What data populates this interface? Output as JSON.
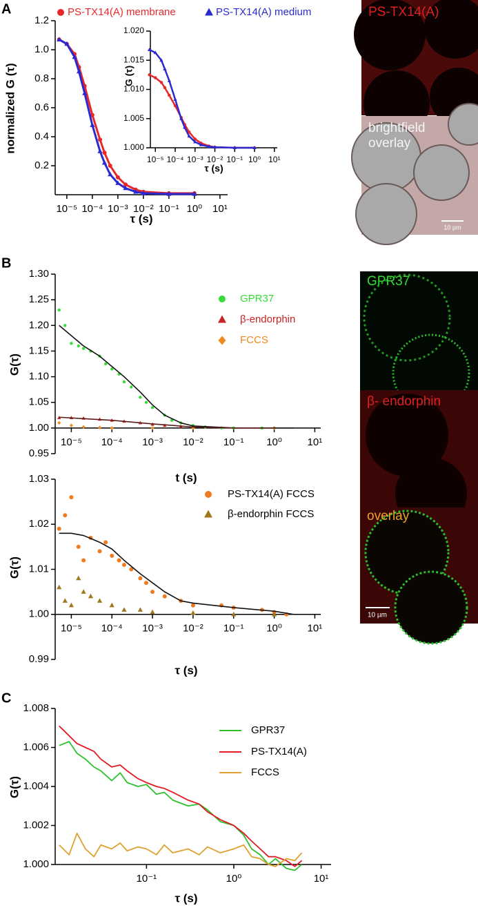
{
  "panel_labels": [
    "A",
    "B",
    "C"
  ],
  "micrographs": {
    "A": {
      "top_label": "PS-TX14(A)",
      "bottom_label": [
        "brightfield",
        "overlay"
      ],
      "scale_bar": "10 µm"
    },
    "B": {
      "labels": [
        "GPR37",
        "β- endorphin",
        "overlay"
      ],
      "scale_bar": "10 µm"
    }
  },
  "chart_data": [
    {
      "type": "line",
      "xlabel": "τ (s)",
      "ylabel": "normalized G (τ)",
      "xscale": "log",
      "legend": "top",
      "legend_text_colored": true,
      "xlim": [
        3.5e-06,
        20
      ],
      "ylim": [
        0,
        1.2
      ],
      "xticks": [
        {
          "value": 1e-05,
          "label": "10⁻⁵"
        },
        {
          "value": 0.0001,
          "label": "10⁻⁴"
        },
        {
          "value": 0.001,
          "label": "10⁻³"
        },
        {
          "value": 0.01,
          "label": "10⁻²"
        },
        {
          "value": 0.1,
          "label": "10⁻¹"
        },
        {
          "value": 1,
          "label": "10⁰"
        },
        {
          "value": 10,
          "label": "10¹"
        }
      ],
      "yticks": [
        0.2,
        0.4,
        0.6,
        0.8,
        {
          "value": 1,
          "label": "1.0"
        },
        1.2
      ],
      "series": [
        {
          "name": "PS-TX14(A) membrane",
          "color": "#e8272a",
          "marker": "circle",
          "line": true,
          "x": [
            5e-06,
            1e-05,
            2e-05,
            3e-05,
            5e-05,
            0.0001,
            0.0002,
            0.0003,
            0.0005,
            0.001,
            0.002,
            0.005,
            0.01,
            0.1,
            1
          ],
          "values": [
            1.07,
            1.04,
            0.97,
            0.88,
            0.75,
            0.55,
            0.38,
            0.29,
            0.2,
            0.12,
            0.07,
            0.035,
            0.02,
            0.01,
            0.01
          ]
        },
        {
          "name": "PS-TX14(A) medium",
          "color": "#2a2ad0",
          "marker": "triangle",
          "line": true,
          "x": [
            5e-06,
            1e-05,
            2e-05,
            3e-05,
            5e-05,
            0.0001,
            0.0002,
            0.0003,
            0.0005,
            0.001,
            0.002,
            0.005,
            0.01,
            0.1,
            1
          ],
          "values": [
            1.07,
            1.04,
            0.95,
            0.85,
            0.7,
            0.48,
            0.3,
            0.22,
            0.14,
            0.08,
            0.045,
            0.02,
            0.01,
            0.005,
            0.005
          ]
        }
      ]
    },
    {
      "type": "line",
      "xlabel": "τ (s)",
      "ylabel": "G (τ)",
      "xscale": "log",
      "xlim": [
        5.6e-06,
        14
      ],
      "ylim": [
        1,
        1.02
      ],
      "xticks": [
        {
          "value": 1e-05,
          "label": "10⁻⁵"
        },
        {
          "value": 0.0001,
          "label": "10⁻⁴"
        },
        {
          "value": 0.001,
          "label": "10⁻³"
        },
        {
          "value": 0.01,
          "label": "10⁻²"
        },
        {
          "value": 0.1,
          "label": "10⁻¹"
        },
        {
          "value": 1,
          "label": "10⁰"
        },
        {
          "value": 10,
          "label": "10¹"
        }
      ],
      "yticks": [
        {
          "value": 1,
          "label": "1.000"
        },
        1.005,
        {
          "value": 1.01,
          "label": "1.010"
        },
        1.015,
        {
          "value": 1.02,
          "label": "1.020"
        }
      ],
      "series": [
        {
          "color": "#e8272a",
          "marker": "circle",
          "line": true,
          "x": [
            5e-06,
            1e-05,
            2e-05,
            3e-05,
            5e-05,
            0.0001,
            0.0002,
            0.0003,
            0.0005,
            0.001,
            0.002,
            0.005,
            0.01,
            0.1,
            1
          ],
          "values": [
            1.0125,
            1.012,
            1.0112,
            1.0103,
            1.009,
            1.0072,
            1.0052,
            1.004,
            1.0027,
            1.0015,
            1.0008,
            1.0003,
            1.0001,
            1.0,
            1.0
          ]
        },
        {
          "color": "#2a2ad0",
          "marker": "triangle",
          "line": true,
          "x": [
            5e-06,
            1e-05,
            2e-05,
            3e-05,
            5e-05,
            0.0001,
            0.0002,
            0.0003,
            0.0005,
            0.001,
            0.002,
            0.005,
            0.01,
            0.1,
            1
          ],
          "values": [
            1.0168,
            1.0163,
            1.015,
            1.0135,
            1.0115,
            1.0083,
            1.005,
            1.0035,
            1.002,
            1.001,
            1.0005,
            1.0002,
            1.0001,
            1.0,
            1.0
          ]
        }
      ]
    },
    {
      "type": "scatter",
      "xlabel": "t (s)",
      "ylabel": "G(τ)",
      "xscale": "log",
      "legend": "upper right",
      "legend_text_colored": true,
      "x_axis_crosses": 1,
      "xlim": [
        4e-06,
        14
      ],
      "ylim": [
        0.95,
        1.3
      ],
      "xticks": [
        {
          "value": 1e-05,
          "label": "10⁻⁵"
        },
        {
          "value": 0.0001,
          "label": "10⁻⁴"
        },
        {
          "value": 0.001,
          "label": "10⁻³"
        },
        {
          "value": 0.01,
          "label": "10⁻²"
        },
        {
          "value": 0.1,
          "label": "10⁻¹"
        },
        {
          "value": 1,
          "label": "10⁰"
        },
        {
          "value": 10,
          "label": "10¹"
        }
      ],
      "yticks": [
        0.95,
        {
          "value": 1,
          "label": "1.00"
        },
        1.05,
        {
          "value": 1.1,
          "label": "1.10"
        },
        1.15,
        {
          "value": 1.2,
          "label": "1.20"
        },
        1.25,
        {
          "value": 1.3,
          "label": "1.30"
        }
      ],
      "series": [
        {
          "name": "GPR37",
          "color": "#33dd33",
          "marker": "circle",
          "x": [
            5e-06,
            7e-06,
            1e-05,
            1.5e-05,
            2e-05,
            3e-05,
            5e-05,
            7e-05,
            0.0001,
            0.00015,
            0.0002,
            0.0003,
            0.0005,
            0.0007,
            0.001,
            0.002,
            0.003,
            0.005,
            0.01,
            0.02,
            0.05,
            0.1,
            0.5,
            1
          ],
          "values": [
            1.23,
            1.2,
            1.165,
            1.16,
            1.155,
            1.15,
            1.14,
            1.125,
            1.115,
            1.105,
            1.09,
            1.08,
            1.06,
            1.05,
            1.04,
            1.025,
            1.015,
            1.01,
            1.005,
            1.002,
            1.0,
            1.0,
            1.0,
            1.0
          ]
        },
        {
          "name": "β-endorphin",
          "color": "#cc2222",
          "marker": "triangle",
          "x": [
            5e-06,
            1e-05,
            2e-05,
            5e-05,
            0.0001,
            0.0002,
            0.0005,
            0.001,
            0.002,
            0.005,
            0.01
          ],
          "values": [
            1.02,
            1.02,
            1.019,
            1.017,
            1.015,
            1.013,
            1.01,
            1.007,
            1.005,
            1.003,
            1.002
          ]
        },
        {
          "name": "FCCS",
          "color": "#f08a1e",
          "marker": "diamond",
          "x": [
            5e-06,
            1e-05,
            2e-05,
            5e-05,
            0.0001,
            0.001,
            0.01,
            1
          ],
          "values": [
            1.01,
            1.005,
            1.002,
            1.001,
            1.0,
            1.0,
            1.0,
            1.0
          ]
        },
        {
          "color": "#111111",
          "line": true,
          "x": [
            5e-06,
            1e-05,
            2e-05,
            5e-05,
            0.0001,
            0.0002,
            0.0005,
            0.001,
            0.002,
            0.005,
            0.01,
            0.1,
            1,
            3
          ],
          "values": [
            1.2,
            1.18,
            1.16,
            1.14,
            1.12,
            1.1,
            1.07,
            1.045,
            1.025,
            1.01,
            1.004,
            1.0,
            1.0,
            1.0
          ]
        },
        {
          "color": "#5a1a1a",
          "line": true,
          "x": [
            5e-06,
            0.0001,
            0.001,
            0.01,
            0.1,
            1
          ],
          "values": [
            1.021,
            1.015,
            1.008,
            1.002,
            1.0,
            1.0
          ]
        }
      ]
    },
    {
      "type": "scatter",
      "xlabel": "τ (s)",
      "ylabel": "G(τ)",
      "xscale": "log",
      "legend": "upper right",
      "x_axis_crosses": 1,
      "xlim": [
        4e-06,
        14
      ],
      "ylim": [
        0.99,
        1.03
      ],
      "xticks": [
        {
          "value": 1e-05,
          "label": "10⁻⁵"
        },
        {
          "value": 0.0001,
          "label": "10⁻⁴"
        },
        {
          "value": 0.001,
          "label": "10⁻³"
        },
        {
          "value": 0.01,
          "label": "10⁻²"
        },
        {
          "value": 0.1,
          "label": "10⁻¹"
        },
        {
          "value": 1,
          "label": "10⁰"
        },
        {
          "value": 10,
          "label": "10¹"
        }
      ],
      "yticks": [
        0.99,
        {
          "value": 1,
          "label": "1.00"
        },
        1.01,
        1.02,
        1.03
      ],
      "series": [
        {
          "name": "PS-TX14(A) FCCS",
          "color": "#f07a1e",
          "marker": "circle",
          "x": [
            5e-06,
            7e-06,
            1e-05,
            1.5e-05,
            2e-05,
            3e-05,
            5e-05,
            7e-05,
            0.0001,
            0.00015,
            0.0002,
            0.0003,
            0.0005,
            0.0007,
            0.001,
            0.002,
            0.005,
            0.01,
            0.05,
            0.1,
            0.5,
            1,
            2
          ],
          "values": [
            1.019,
            1.022,
            1.026,
            1.015,
            1.012,
            1.017,
            1.014,
            1.016,
            1.013,
            1.012,
            1.011,
            1.01,
            1.008,
            1.007,
            1.005,
            1.004,
            1.003,
            1.002,
            1.002,
            1.0015,
            1.001,
            1.0005,
            1.0
          ]
        },
        {
          "name": "β-endorphin FCCS",
          "color": "#a0781e",
          "marker": "triangle",
          "x": [
            5e-06,
            7e-06,
            1e-05,
            1.5e-05,
            2e-05,
            3e-05,
            5e-05,
            0.0001,
            0.0002,
            0.0005,
            0.001,
            0.01,
            0.1,
            1
          ],
          "values": [
            1.006,
            1.003,
            1.002,
            1.008,
            1.005,
            1.004,
            1.003,
            1.002,
            1.001,
            1.001,
            1.0005,
            1.0003,
            1.0,
            1.0
          ]
        },
        {
          "color": "#111111",
          "line": true,
          "x": [
            5e-06,
            1e-05,
            2e-05,
            5e-05,
            0.0001,
            0.0002,
            0.0005,
            0.001,
            0.002,
            0.005,
            0.01,
            0.1,
            1,
            3
          ],
          "values": [
            1.018,
            1.018,
            1.0175,
            1.016,
            1.0145,
            1.012,
            1.009,
            1.007,
            1.005,
            1.003,
            1.0025,
            1.0015,
            1.0007,
            1.0
          ]
        }
      ]
    },
    {
      "type": "line",
      "xlabel": "τ (s)",
      "ylabel": "G(τ)",
      "xscale": "log",
      "legend": "upper right",
      "xlim": [
        0.009,
        13
      ],
      "ylim": [
        1,
        1.008
      ],
      "xticks": [
        {
          "value": 0.1,
          "label": "10⁻¹"
        },
        {
          "value": 1,
          "label": "10⁰"
        },
        {
          "value": 10,
          "label": "10¹"
        }
      ],
      "yticks": [
        {
          "value": 1,
          "label": "1.000"
        },
        1.002,
        1.004,
        1.006,
        1.008
      ],
      "series": [
        {
          "name": "GPR37",
          "color": "#2cc12c",
          "line": true,
          "x": [
            0.01,
            0.013,
            0.016,
            0.02,
            0.025,
            0.03,
            0.04,
            0.05,
            0.06,
            0.08,
            0.1,
            0.13,
            0.16,
            0.2,
            0.3,
            0.4,
            0.5,
            0.7,
            1,
            1.3,
            1.6,
            2,
            2.5,
            3,
            4,
            5,
            6
          ],
          "values": [
            1.0061,
            1.0063,
            1.0057,
            1.0054,
            1.005,
            1.0048,
            1.0043,
            1.0047,
            1.0042,
            1.004,
            1.0041,
            1.0036,
            1.0037,
            1.0033,
            1.003,
            1.0031,
            1.0028,
            1.0022,
            1.002,
            1.0015,
            1.0008,
            1.0005,
            1.0,
            1.0003,
            0.9998,
            0.9997,
            1.0
          ]
        },
        {
          "name": "PS-TX14(A)",
          "color": "#e01b24",
          "line": true,
          "x": [
            0.01,
            0.013,
            0.016,
            0.02,
            0.025,
            0.03,
            0.04,
            0.05,
            0.06,
            0.08,
            0.1,
            0.13,
            0.16,
            0.2,
            0.3,
            0.4,
            0.5,
            0.7,
            1,
            1.3,
            1.6,
            2,
            2.5,
            3,
            4,
            5,
            6
          ],
          "values": [
            1.0071,
            1.0066,
            1.0062,
            1.006,
            1.0058,
            1.0054,
            1.005,
            1.0051,
            1.0048,
            1.0044,
            1.0042,
            1.004,
            1.0039,
            1.0037,
            1.0033,
            1.0031,
            1.0027,
            1.0023,
            1.002,
            1.0016,
            1.0012,
            1.0008,
            1.0004,
            1.0004,
            1.0002,
            0.9999,
            1.0002
          ]
        },
        {
          "name": "FCCS",
          "color": "#e0a030",
          "line": true,
          "x": [
            0.01,
            0.013,
            0.016,
            0.02,
            0.025,
            0.03,
            0.04,
            0.05,
            0.06,
            0.08,
            0.1,
            0.13,
            0.16,
            0.2,
            0.3,
            0.4,
            0.5,
            0.7,
            1,
            1.3,
            1.6,
            2,
            2.5,
            3,
            4,
            5,
            6
          ],
          "values": [
            1.001,
            1.0005,
            1.0016,
            1.0008,
            1.0004,
            1.001,
            1.0008,
            1.0011,
            1.0007,
            1.0009,
            1.0008,
            1.0005,
            1.001,
            1.0006,
            1.0008,
            1.0005,
            1.0009,
            1.0006,
            1.0008,
            1.001,
            1.0004,
            1.0003,
            1.0,
            0.9999,
            1.0003,
            1.0002,
            1.0006
          ]
        }
      ]
    }
  ]
}
